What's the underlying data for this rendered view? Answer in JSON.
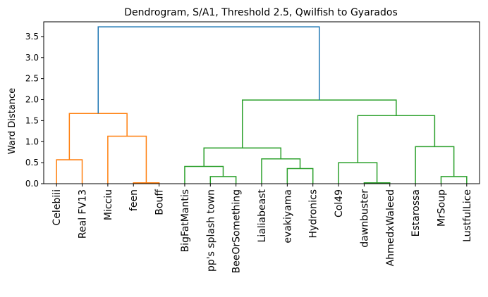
{
  "chart_data": {
    "type": "dendrogram",
    "title": "Dendrogram, S/A1, Threshold 2.5, Qwilfish to Gyarados",
    "xlabel": "",
    "ylabel": "Ward Distance",
    "ylim": [
      0,
      3.85
    ],
    "yticks": [
      "0.0",
      "0.5",
      "1.0",
      "1.5",
      "2.0",
      "2.5",
      "3.0",
      "3.5"
    ],
    "grid": false,
    "leaves": [
      "Celebiii",
      "Real FV13",
      "Micciu",
      "feen",
      "Bouff",
      "BigFatMantis",
      "pp's splash town",
      "BeeOrSomething",
      "Lialiabeast",
      "evakiyama",
      "Hydronics",
      "Col49",
      "dawnbuster",
      "AhmedxWaleed",
      "Estarossa",
      "MrSoup",
      "LustfulLice"
    ],
    "colors": {
      "C1": "#ff7f0e",
      "C2": "#2ca02c",
      "above": "#1f77b4"
    },
    "merges": [
      {
        "left": 0,
        "right": 1,
        "height": 0.57,
        "color": "C1"
      },
      {
        "left": 3,
        "right": 4,
        "height": 0.02,
        "color": "C1"
      },
      {
        "left": 2,
        "right": 18,
        "height": 1.13,
        "color": "C1"
      },
      {
        "left": 17,
        "right": 19,
        "height": 1.67,
        "color": "C1"
      },
      {
        "left": 6,
        "right": 7,
        "height": 0.17,
        "color": "C2"
      },
      {
        "left": 5,
        "right": 21,
        "height": 0.41,
        "color": "C2"
      },
      {
        "left": 9,
        "right": 10,
        "height": 0.36,
        "color": "C2"
      },
      {
        "left": 8,
        "right": 23,
        "height": 0.59,
        "color": "C2"
      },
      {
        "left": 22,
        "right": 24,
        "height": 0.85,
        "color": "C2"
      },
      {
        "left": 12,
        "right": 13,
        "height": 0.02,
        "color": "C2"
      },
      {
        "left": 11,
        "right": 26,
        "height": 0.5,
        "color": "C2"
      },
      {
        "left": 15,
        "right": 16,
        "height": 0.17,
        "color": "C2"
      },
      {
        "left": 14,
        "right": 28,
        "height": 0.88,
        "color": "C2"
      },
      {
        "left": 27,
        "right": 29,
        "height": 1.62,
        "color": "C2"
      },
      {
        "left": 25,
        "right": 30,
        "height": 1.99,
        "color": "C2"
      },
      {
        "left": 20,
        "right": 31,
        "height": 3.73,
        "color": "above"
      }
    ]
  }
}
